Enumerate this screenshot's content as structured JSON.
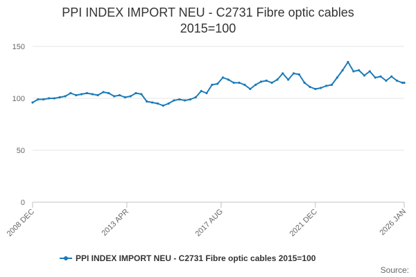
{
  "chart_data": {
    "type": "line",
    "title": [
      "PPI INDEX IMPORT NEU - C2731 Fibre optic cables",
      "2015=100"
    ],
    "xlabel": "",
    "ylabel": "",
    "ylim": [
      0,
      150
    ],
    "yticks": [
      0,
      50,
      100,
      150
    ],
    "xlim": [
      "2008-12",
      "2026-01"
    ],
    "xticks": [
      {
        "date": "2008-12",
        "label": "2008 DEC"
      },
      {
        "date": "2013-04",
        "label": "2013 APR"
      },
      {
        "date": "2017-08",
        "label": "2017 AUG"
      },
      {
        "date": "2021-12",
        "label": "2021 DEC"
      },
      {
        "date": "2026-01",
        "label": "2026 JAN"
      }
    ],
    "grid": "horizontal",
    "legend_position": "bottom",
    "color": "#1a7ab8",
    "series": [
      {
        "name": "PPI INDEX IMPORT NEU - C2731 Fibre optic cables 2015=100",
        "points": [
          [
            "2008-12",
            96
          ],
          [
            "2009-03",
            99
          ],
          [
            "2009-06",
            99
          ],
          [
            "2009-09",
            100
          ],
          [
            "2009-12",
            100
          ],
          [
            "2010-03",
            101
          ],
          [
            "2010-06",
            102
          ],
          [
            "2010-09",
            105
          ],
          [
            "2010-12",
            103
          ],
          [
            "2011-03",
            104
          ],
          [
            "2011-06",
            105
          ],
          [
            "2011-09",
            104
          ],
          [
            "2011-12",
            103
          ],
          [
            "2012-03",
            106
          ],
          [
            "2012-06",
            105
          ],
          [
            "2012-09",
            102
          ],
          [
            "2012-12",
            103
          ],
          [
            "2013-03",
            101
          ],
          [
            "2013-06",
            102
          ],
          [
            "2013-09",
            105
          ],
          [
            "2013-12",
            104
          ],
          [
            "2014-03",
            97
          ],
          [
            "2014-06",
            96
          ],
          [
            "2014-09",
            95
          ],
          [
            "2014-12",
            93
          ],
          [
            "2015-03",
            95
          ],
          [
            "2015-06",
            98
          ],
          [
            "2015-09",
            99
          ],
          [
            "2015-12",
            98
          ],
          [
            "2016-03",
            99
          ],
          [
            "2016-06",
            101
          ],
          [
            "2016-09",
            107
          ],
          [
            "2016-12",
            105
          ],
          [
            "2017-03",
            113
          ],
          [
            "2017-06",
            114
          ],
          [
            "2017-09",
            120
          ],
          [
            "2017-12",
            118
          ],
          [
            "2018-03",
            115
          ],
          [
            "2018-06",
            115
          ],
          [
            "2018-09",
            113
          ],
          [
            "2018-12",
            109
          ],
          [
            "2019-03",
            113
          ],
          [
            "2019-06",
            116
          ],
          [
            "2019-09",
            117
          ],
          [
            "2019-12",
            115
          ],
          [
            "2020-03",
            118
          ],
          [
            "2020-06",
            124
          ],
          [
            "2020-09",
            118
          ],
          [
            "2020-12",
            124
          ],
          [
            "2021-03",
            123
          ],
          [
            "2021-06",
            115
          ],
          [
            "2021-09",
            111
          ],
          [
            "2021-12",
            109
          ],
          [
            "2022-03",
            110
          ],
          [
            "2022-06",
            112
          ],
          [
            "2022-09",
            113
          ],
          [
            "2022-12",
            120
          ],
          [
            "2023-03",
            127
          ],
          [
            "2023-06",
            135
          ],
          [
            "2023-09",
            126
          ],
          [
            "2023-12",
            127
          ],
          [
            "2024-03",
            122
          ],
          [
            "2024-06",
            126
          ],
          [
            "2024-09",
            120
          ],
          [
            "2024-12",
            121
          ],
          [
            "2025-03",
            117
          ],
          [
            "2025-06",
            121
          ],
          [
            "2025-09",
            117
          ],
          [
            "2025-12",
            115
          ],
          [
            "2026-01",
            115
          ]
        ]
      }
    ]
  },
  "source_label": "Source:"
}
